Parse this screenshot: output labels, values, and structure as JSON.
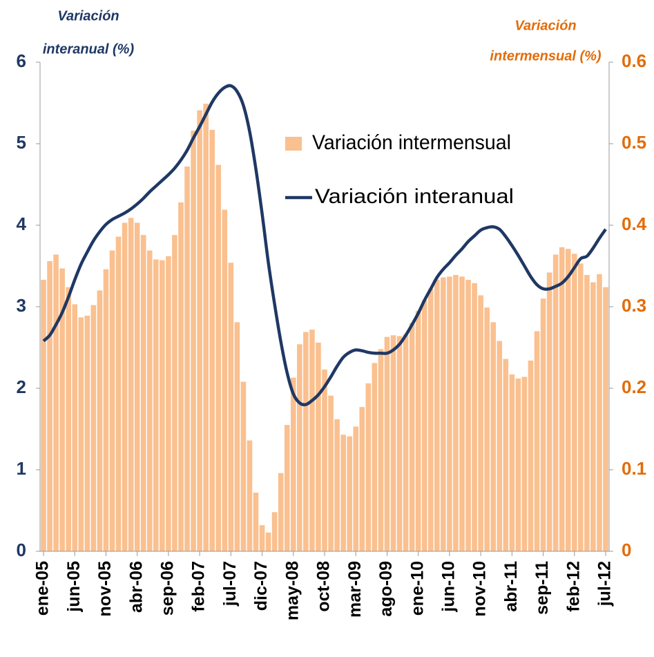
{
  "chart_data": {
    "type": "bar-line",
    "ylabel": [
      "Variación",
      "interanual (%)"
    ],
    "y2label": [
      "Variación",
      "intermensual (%)"
    ],
    "categories": [
      "ene-05",
      null,
      null,
      null,
      null,
      "jun-05",
      null,
      null,
      null,
      null,
      "nov-05",
      null,
      null,
      null,
      null,
      "abr-06",
      null,
      null,
      null,
      null,
      "sep-06",
      null,
      null,
      null,
      null,
      "feb-07",
      null,
      null,
      null,
      null,
      "jul-07",
      null,
      null,
      null,
      null,
      "dic-07",
      null,
      null,
      null,
      null,
      "may-08",
      null,
      null,
      null,
      null,
      "oct-08",
      null,
      null,
      null,
      null,
      "mar-09",
      null,
      null,
      null,
      null,
      "ago-09",
      null,
      null,
      null,
      null,
      "ene-10",
      null,
      null,
      null,
      null,
      "jun-10",
      null,
      null,
      null,
      null,
      "nov-10",
      null,
      null,
      null,
      null,
      "abr-11",
      null,
      null,
      null,
      null,
      "sep-11",
      null,
      null,
      null,
      null,
      "feb-12",
      null,
      null,
      null,
      null,
      "jul-12"
    ],
    "series": [
      {
        "name": "Variación intermensual",
        "type": "bar",
        "axis": "y2",
        "color": "#fac08f",
        "values": [
          0.333,
          0.356,
          0.364,
          0.347,
          0.324,
          0.303,
          0.287,
          0.289,
          0.302,
          0.32,
          0.346,
          0.369,
          0.386,
          0.403,
          0.409,
          0.403,
          0.388,
          0.369,
          0.358,
          0.357,
          0.362,
          0.388,
          0.428,
          0.472,
          0.516,
          0.541,
          0.549,
          0.517,
          0.474,
          0.419,
          0.354,
          0.281,
          0.208,
          0.136,
          0.072,
          0.032,
          0.023,
          0.048,
          0.096,
          0.155,
          0.213,
          0.254,
          0.269,
          0.272,
          0.256,
          0.223,
          0.191,
          0.162,
          0.143,
          0.141,
          0.153,
          0.177,
          0.206,
          0.231,
          0.248,
          0.263,
          0.265,
          0.264,
          0.266,
          0.28,
          0.295,
          0.308,
          0.322,
          0.333,
          0.336,
          0.337,
          0.339,
          0.337,
          0.333,
          0.329,
          0.314,
          0.299,
          0.281,
          0.258,
          0.236,
          0.217,
          0.212,
          0.214,
          0.234,
          0.27,
          0.31,
          0.342,
          0.364,
          0.373,
          0.371,
          0.365,
          0.353,
          0.339,
          0.33,
          0.34,
          0.324
        ]
      },
      {
        "name": "Variación interanual",
        "type": "line",
        "axis": "y",
        "color": "#1f3864",
        "values": [
          2.58,
          2.65,
          2.78,
          2.93,
          3.12,
          3.33,
          3.52,
          3.67,
          3.81,
          3.92,
          4.01,
          4.07,
          4.11,
          4.15,
          4.2,
          4.26,
          4.33,
          4.41,
          4.48,
          4.55,
          4.62,
          4.7,
          4.8,
          4.92,
          5.07,
          5.21,
          5.36,
          5.51,
          5.62,
          5.69,
          5.71,
          5.64,
          5.47,
          5.15,
          4.69,
          4.14,
          3.54,
          3.03,
          2.57,
          2.19,
          1.93,
          1.82,
          1.8,
          1.85,
          1.92,
          2.02,
          2.14,
          2.27,
          2.38,
          2.44,
          2.47,
          2.46,
          2.44,
          2.43,
          2.43,
          2.43,
          2.47,
          2.54,
          2.65,
          2.78,
          2.92,
          3.08,
          3.22,
          3.36,
          3.46,
          3.54,
          3.63,
          3.71,
          3.8,
          3.87,
          3.94,
          3.97,
          3.98,
          3.95,
          3.86,
          3.75,
          3.63,
          3.5,
          3.37,
          3.27,
          3.22,
          3.22,
          3.25,
          3.29,
          3.37,
          3.48,
          3.59,
          3.62,
          3.72,
          3.84,
          3.95
        ]
      }
    ],
    "ylim": [
      0,
      6
    ],
    "yticks": [
      0,
      1,
      2,
      3,
      4,
      5,
      6
    ],
    "y2lim": [
      0,
      0.6
    ],
    "y2ticks": [
      0,
      0.1,
      0.2,
      0.3,
      0.4,
      0.5,
      0.6
    ],
    "y_color": "#1f3864",
    "y2_color": "#e36c09",
    "legend": "top-center"
  }
}
